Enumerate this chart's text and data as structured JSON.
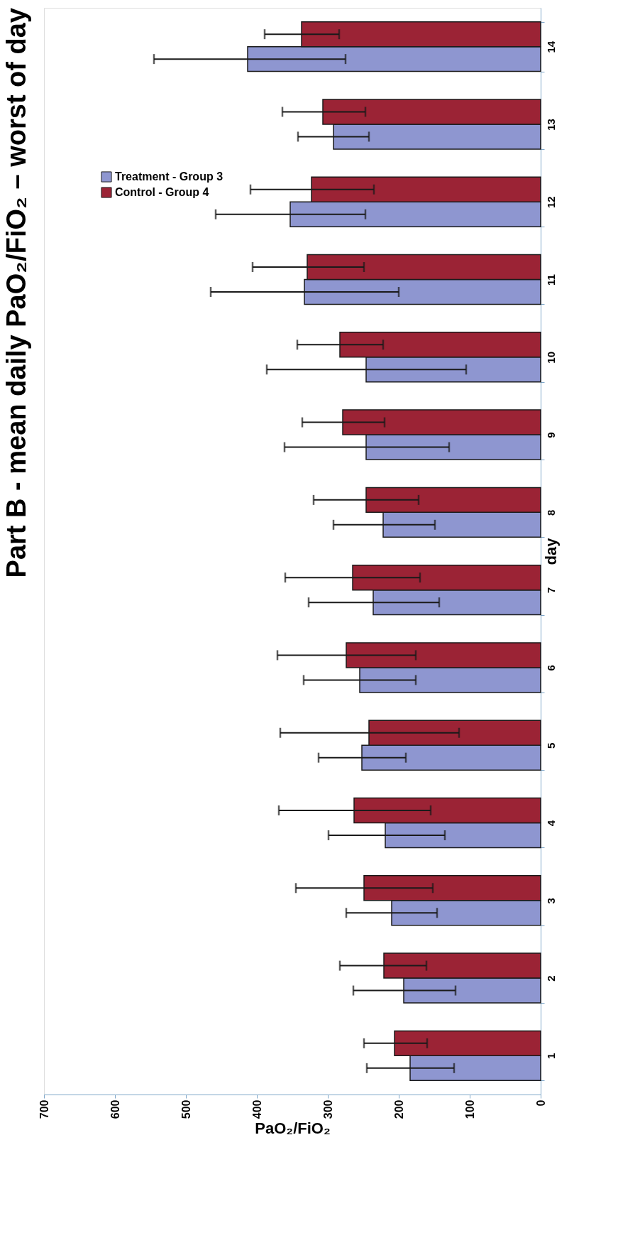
{
  "chart_data": {
    "type": "bar",
    "orientation": "horizontal",
    "title": "Part B - mean daily PaO₂/FiO₂ – worst of day",
    "xlabel": "PaO₂/FiO₂",
    "ylabel": "day",
    "categories": [
      "14",
      "13",
      "12",
      "11",
      "10",
      "9",
      "8",
      "7",
      "6",
      "5",
      "4",
      "3",
      "2",
      "1"
    ],
    "xlim": [
      700,
      0
    ],
    "xticks": [
      700,
      600,
      500,
      400,
      300,
      200,
      100,
      0
    ],
    "grid": false,
    "legend": "top left",
    "series": [
      {
        "name": "Treatment - Group 3",
        "color": "#8e96d0",
        "values": [
          413,
          292,
          353,
          333,
          246,
          246,
          222,
          236,
          255,
          252,
          219,
          210,
          193,
          184
        ],
        "errors": [
          [
            275,
            545
          ],
          [
            242,
            342
          ],
          [
            247,
            458
          ],
          [
            200,
            465
          ],
          [
            105,
            386
          ],
          [
            129,
            361
          ],
          [
            149,
            292
          ],
          [
            143,
            327
          ],
          [
            176,
            334
          ],
          [
            190,
            313
          ],
          [
            135,
            299
          ],
          [
            146,
            274
          ],
          [
            120,
            264
          ],
          [
            122,
            245
          ]
        ]
      },
      {
        "name": "Control - Group 4",
        "color": "#9b2335",
        "values": [
          337,
          307,
          323,
          329,
          283,
          279,
          246,
          265,
          274,
          242,
          263,
          249,
          221,
          206
        ],
        "errors": [
          [
            284,
            389
          ],
          [
            247,
            364
          ],
          [
            235,
            409
          ],
          [
            249,
            406
          ],
          [
            222,
            343
          ],
          [
            220,
            336
          ],
          [
            172,
            320
          ],
          [
            170,
            360
          ],
          [
            176,
            371
          ],
          [
            115,
            367
          ],
          [
            155,
            369
          ],
          [
            152,
            345
          ],
          [
            161,
            283
          ],
          [
            160,
            249
          ]
        ]
      }
    ]
  }
}
